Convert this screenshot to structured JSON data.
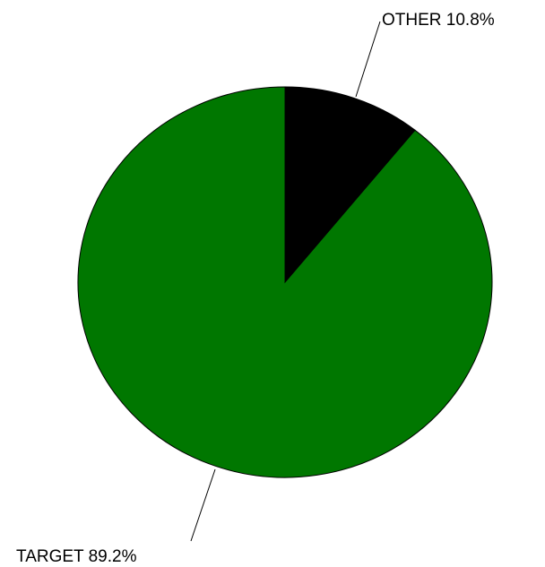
{
  "chart_data": {
    "type": "pie",
    "slices": [
      {
        "label": "OTHER",
        "value": 10.8,
        "value_label": "10.8%",
        "color": "#000000"
      },
      {
        "label": "TARGET",
        "value": 89.2,
        "value_label": "89.2%",
        "color": "#007700"
      }
    ],
    "start_angle": "12 o'clock",
    "direction": "clockwise",
    "legend": "none",
    "slice_outline_color": "#000000"
  }
}
